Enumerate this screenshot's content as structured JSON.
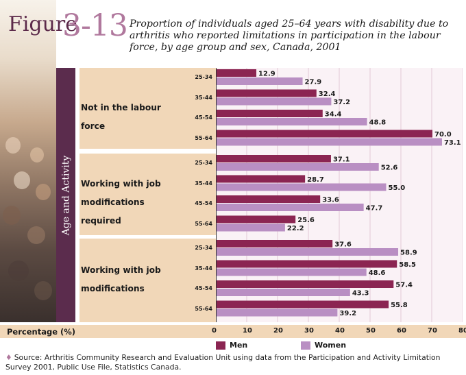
{
  "header": {
    "figure_word": "Figure",
    "figure_number": "3-13"
  },
  "colors": {
    "men": "#8b2552",
    "women": "#b98fc3",
    "panel": "#f1d7b8",
    "sidebar": "#5b2c4d",
    "plot_bg": "#faf2f6"
  },
  "chart_data": {
    "type": "bar",
    "orientation": "horizontal",
    "title": "Proportion of individuals aged 25–64 years with disability due to arthritis who reported limitations in participation in the labour force, by age group and sex, Canada, 2001",
    "ylabel": "Age and Activity",
    "xlabel": "Percentage (%)",
    "xlim": [
      0,
      80
    ],
    "x_ticks": [
      "0",
      "10",
      "20",
      "30",
      "40",
      "50",
      "60",
      "70",
      "80"
    ],
    "grid": true,
    "legend_position": "bottom",
    "groups": [
      {
        "label_line1": "Not in the labour force",
        "label_line2": "",
        "categories": [
          "25-34",
          "35-44",
          "45-54",
          "55-64"
        ],
        "men": [
          12.9,
          32.4,
          34.4,
          70.0
        ],
        "women": [
          27.9,
          37.2,
          48.8,
          73.1
        ]
      },
      {
        "label_line1": "Working with job",
        "label_line2": "modifications required",
        "categories": [
          "25-34",
          "35-44",
          "45-54",
          "55-64"
        ],
        "men": [
          37.1,
          28.7,
          33.6,
          25.6
        ],
        "women": [
          52.6,
          55.0,
          47.7,
          22.2
        ]
      },
      {
        "label_line1": "Working with job",
        "label_line2": "modifications",
        "categories": [
          "25-34",
          "35-44",
          "45-54",
          "55-64"
        ],
        "men": [
          37.6,
          58.5,
          57.4,
          55.8
        ],
        "women": [
          58.9,
          48.6,
          43.3,
          39.2
        ]
      }
    ],
    "series": [
      {
        "name": "Men"
      },
      {
        "name": "Women"
      }
    ]
  },
  "source": {
    "text": "Source: Arthritis Community Research and Evaluation Unit using data from the Participation and Activity Limitation Survey 2001, Public Use File, Statistics Canada."
  }
}
